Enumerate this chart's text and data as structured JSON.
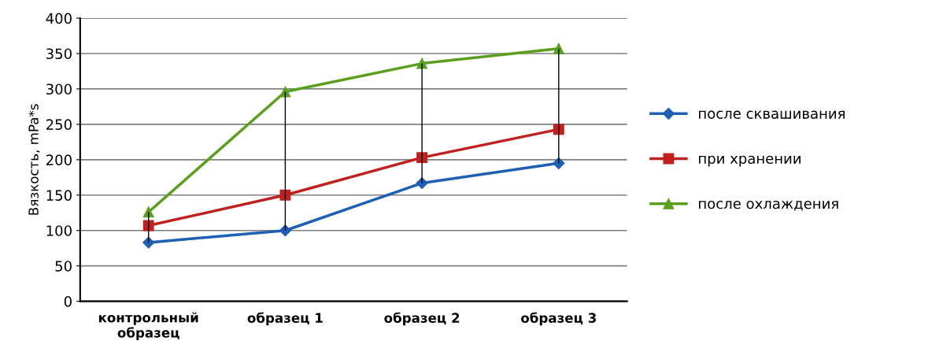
{
  "chart_data": {
    "type": "line",
    "ylabel": "Вязкость, mPa*s",
    "categories": [
      "контрольный\nобразец",
      "образец 1",
      "образец 2",
      "образец 3"
    ],
    "series": [
      {
        "name": "после сквашивания",
        "color": "#1f5fb4",
        "marker": "diamond",
        "values": [
          83,
          100,
          167,
          195
        ]
      },
      {
        "name": "при хранении",
        "color": "#c0201e",
        "marker": "square",
        "values": [
          107,
          150,
          203,
          243
        ]
      },
      {
        "name": "после охлаждения",
        "color": "#5aa01e",
        "marker": "triangle",
        "values": [
          126,
          296,
          336,
          357
        ]
      },
      {
        "type": "bar",
        "color": "#000000",
        "base": [
          83,
          100,
          167,
          195
        ],
        "values": [
          43,
          196,
          169,
          162
        ]
      }
    ],
    "ylim": [
      0,
      400
    ],
    "yticks": [
      0,
      50,
      100,
      150,
      200,
      250,
      300,
      350,
      400
    ],
    "grid": "y",
    "legend": "right"
  }
}
